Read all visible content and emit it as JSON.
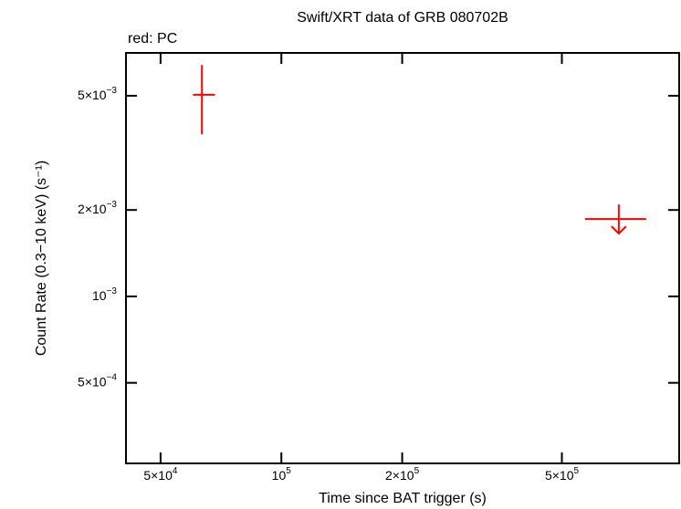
{
  "chart_data": {
    "type": "scatter",
    "title": "Swift/XRT data of GRB 080702B",
    "subtitle": "red: PC",
    "x_label": "Time since BAT trigger (s)",
    "y_label": "Count Rate (0.3−10 keV) (s⁻¹)",
    "log_x": true,
    "log_y": true,
    "xlim": [
      41000,
      980000
    ],
    "ylim": [
      0.000262,
      0.00705
    ],
    "xticks": [
      {
        "value": 50000,
        "label": "5×10",
        "exponent": "4"
      },
      {
        "value": 100000,
        "label": "10",
        "exponent": "5"
      },
      {
        "value": 200000,
        "label": "2×10",
        "exponent": "5"
      },
      {
        "value": 500000,
        "label": "5×10",
        "exponent": "5"
      }
    ],
    "yticks": [
      {
        "value": 0.0005,
        "label": "5×10",
        "exponent": "−4"
      },
      {
        "value": 0.001,
        "label": "10",
        "exponent": "−3"
      },
      {
        "value": 0.002,
        "label": "2×10",
        "exponent": "−3"
      },
      {
        "value": 0.005,
        "label": "5×10",
        "exponent": "−3"
      }
    ],
    "series": [
      {
        "name": "PC",
        "color": "#ff0000",
        "points": [
          {
            "x": 63400,
            "x_low": 60200,
            "x_high": 68300,
            "y": 0.00504,
            "y_low": 0.00367,
            "y_high": 0.0064,
            "upper_limit": false
          },
          {
            "x": 693000,
            "x_low": 571000,
            "x_high": 811000,
            "y": 0.00186,
            "upper_limit": true
          }
        ]
      }
    ]
  }
}
